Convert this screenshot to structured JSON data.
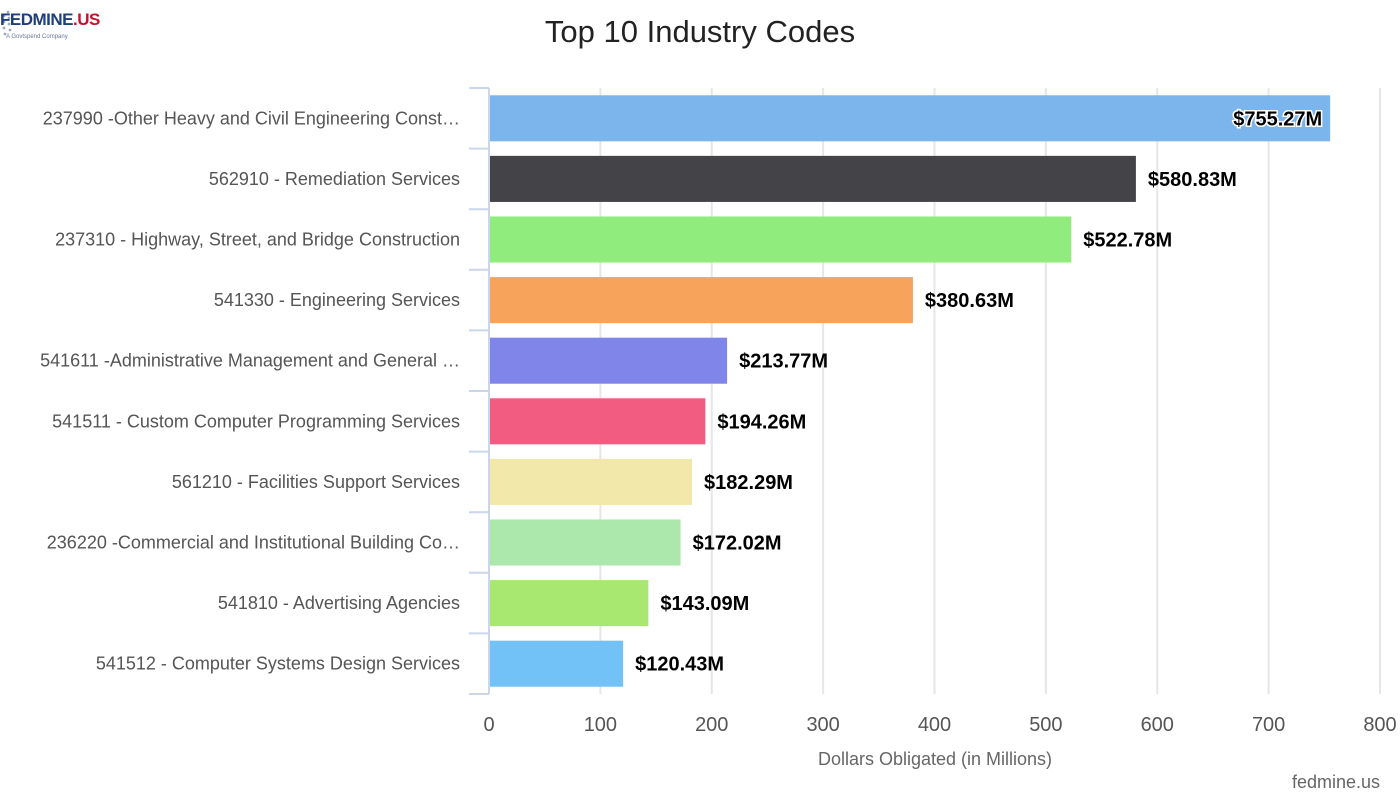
{
  "logo": {
    "main": "FEDMINE",
    "suffix": ".US",
    "sub": "A Govtspend Company"
  },
  "credit": "fedmine.us",
  "chart_data": {
    "type": "bar",
    "orientation": "horizontal",
    "title": "Top 10 Industry Codes",
    "xlabel": "Dollars Obligated (in Millions)",
    "ylabel": "",
    "xlim": [
      0,
      800
    ],
    "ticks": [
      0,
      100,
      200,
      300,
      400,
      500,
      600,
      700,
      800
    ],
    "grid": true,
    "categories": [
      "237990 -Other Heavy and Civil Engineering Const…",
      "562910 - Remediation Services",
      "237310 - Highway, Street, and Bridge Construction",
      "541330 - Engineering Services",
      "541611 -Administrative Management and General …",
      "541511 - Custom Computer Programming Services",
      "561210 - Facilities Support Services",
      "236220 -Commercial and Institutional Building Co…",
      "541810 - Advertising Agencies",
      "541512 - Computer Systems Design Services"
    ],
    "values": [
      755.27,
      580.83,
      522.78,
      380.63,
      213.77,
      194.26,
      182.29,
      172.02,
      143.09,
      120.43
    ],
    "data_labels": [
      "$755.27M",
      "$580.83M",
      "$522.78M",
      "$380.63M",
      "$213.77M",
      "$194.26M",
      "$182.29M",
      "$172.02M",
      "$143.09M",
      "$120.43M"
    ],
    "colors": [
      "#7cb5ec",
      "#434348",
      "#90ed7d",
      "#f7a35c",
      "#8085e9",
      "#f15c80",
      "#f1e8aa",
      "#ace7ac",
      "#a8e870",
      "#72c2f7"
    ]
  }
}
